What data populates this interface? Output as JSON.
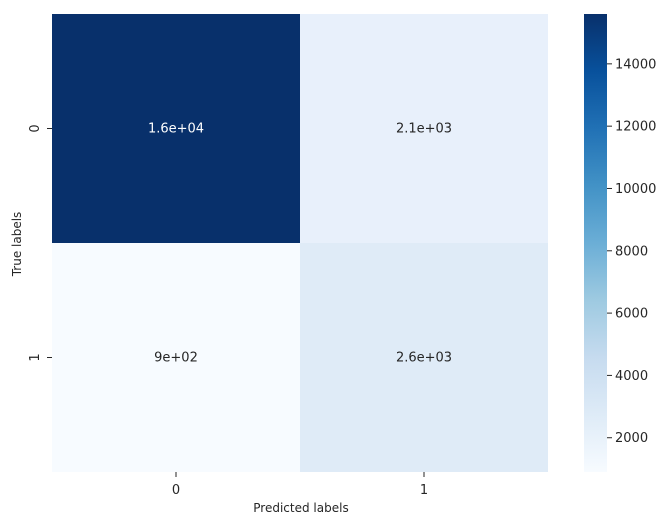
{
  "chart_data": {
    "type": "heatmap",
    "title": "",
    "xlabel": "Predicted labels",
    "ylabel": "True labels",
    "x_categories": [
      "0",
      "1"
    ],
    "y_categories": [
      "0",
      "1"
    ],
    "values": [
      [
        15600,
        2100
      ],
      [
        900,
        2600
      ]
    ],
    "annotations": [
      [
        "1.6e+04",
        "2.1e+03"
      ],
      [
        "9e+02",
        "2.6e+03"
      ]
    ],
    "colormap": "Blues",
    "colorbar": {
      "min": 900,
      "max": 15600,
      "ticks": [
        2000,
        4000,
        6000,
        8000,
        10000,
        12000,
        14000
      ],
      "tick_labels": [
        "2000",
        "4000",
        "6000",
        "8000",
        "10000",
        "12000",
        "14000"
      ]
    },
    "colors": {
      "cell_0_0": "#08306b",
      "cell_0_1": "#e8f0fb",
      "cell_1_0": "#f7fbff",
      "cell_1_1": "#dfebf7",
      "annotation_dark": "#ffffff",
      "annotation_light": "#262626"
    }
  }
}
